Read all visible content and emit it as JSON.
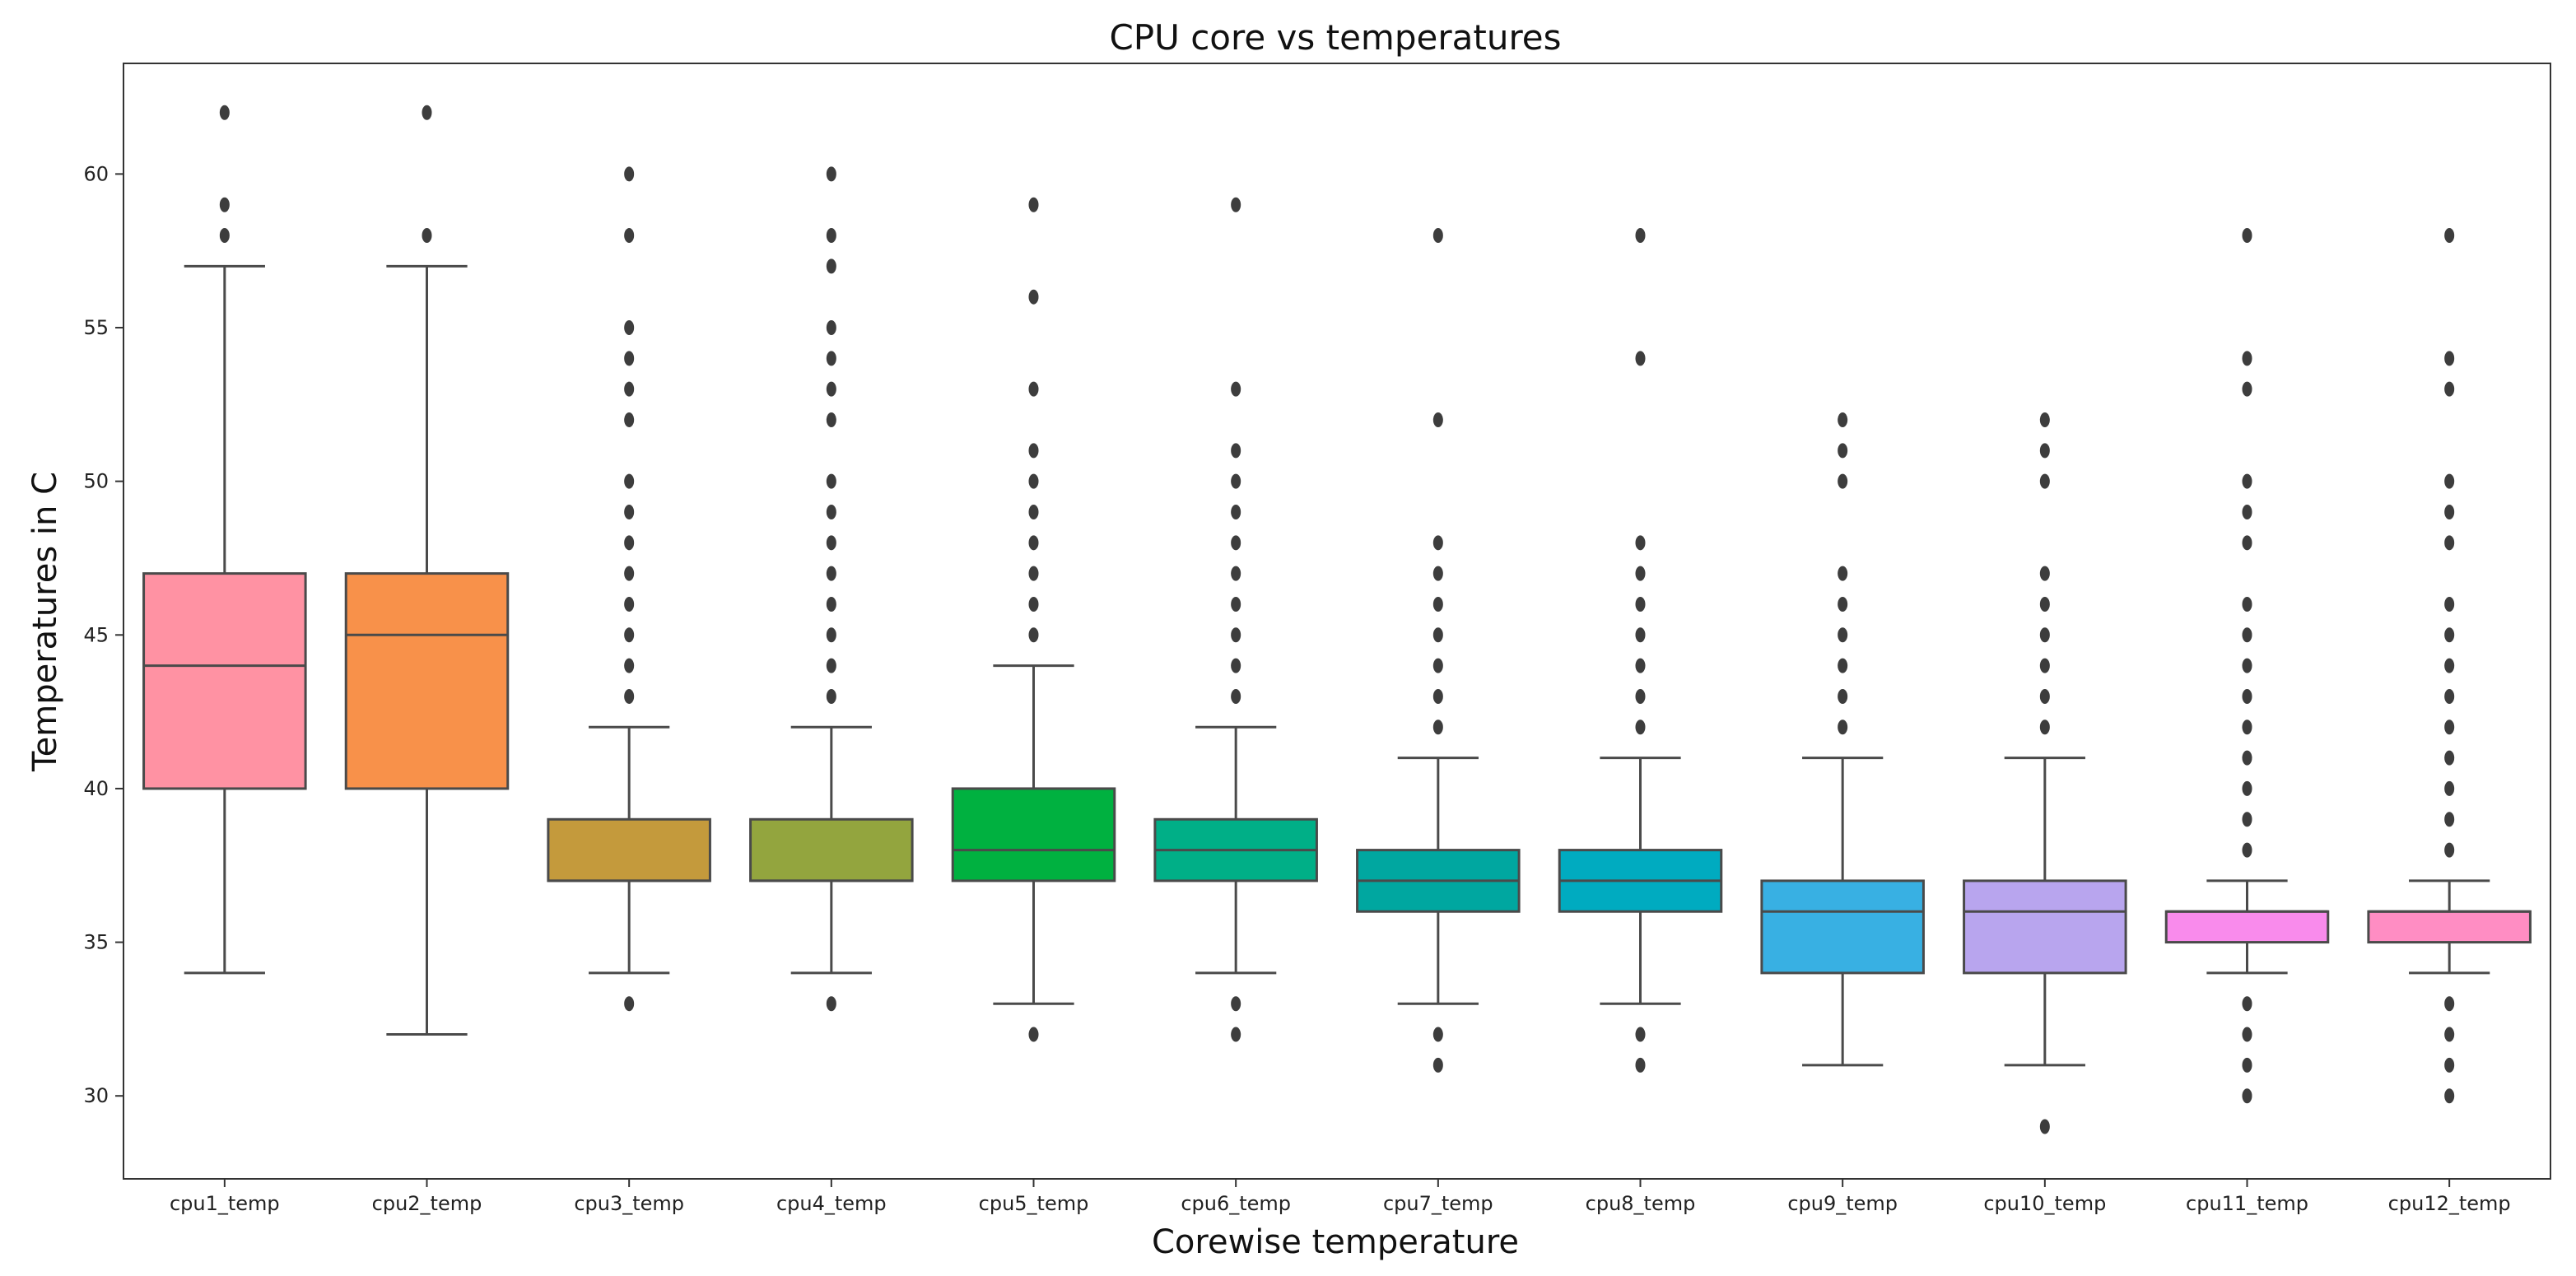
{
  "chart_data": {
    "type": "boxplot",
    "title": "CPU core vs temperatures",
    "xlabel": "Corewise temperature",
    "ylabel": "Temperatures in C",
    "ylim": [
      27.3,
      63.6
    ],
    "yticks": [
      30,
      35,
      40,
      45,
      50,
      55,
      60
    ],
    "grid": false,
    "series": [
      {
        "name": "cpu1_temp",
        "color": "#FF92A3",
        "whisker_low": 34,
        "q1": 40,
        "median": 44,
        "q3": 47,
        "whisker_high": 57,
        "outliers": [
          58,
          59,
          62
        ]
      },
      {
        "name": "cpu2_temp",
        "color": "#F8914A",
        "whisker_low": 32,
        "q1": 40,
        "median": 45,
        "q3": 47,
        "whisker_high": 57,
        "outliers": [
          58,
          62
        ]
      },
      {
        "name": "cpu3_temp",
        "color": "#C49A3C",
        "whisker_low": 34,
        "q1": 37,
        "median": 37,
        "q3": 39,
        "whisker_high": 42,
        "outliers": [
          33,
          43,
          44,
          45,
          46,
          47,
          48,
          49,
          50,
          52,
          53,
          54,
          55,
          58,
          60
        ]
      },
      {
        "name": "cpu4_temp",
        "color": "#93A53E",
        "whisker_low": 34,
        "q1": 37,
        "median": 37,
        "q3": 39,
        "whisker_high": 42,
        "outliers": [
          33,
          43,
          44,
          45,
          46,
          47,
          48,
          49,
          50,
          52,
          53,
          54,
          55,
          57,
          58,
          60
        ]
      },
      {
        "name": "cpu5_temp",
        "color": "#00B140",
        "whisker_low": 33,
        "q1": 37,
        "median": 38,
        "q3": 40,
        "whisker_high": 44,
        "outliers": [
          32,
          45,
          46,
          47,
          48,
          49,
          50,
          51,
          53,
          56,
          59
        ]
      },
      {
        "name": "cpu6_temp",
        "color": "#00AF87",
        "whisker_low": 34,
        "q1": 37,
        "median": 38,
        "q3": 39,
        "whisker_high": 42,
        "outliers": [
          32,
          33,
          43,
          44,
          45,
          46,
          47,
          48,
          49,
          50,
          51,
          53,
          59
        ]
      },
      {
        "name": "cpu7_temp",
        "color": "#00A7A0",
        "whisker_low": 33,
        "q1": 36,
        "median": 37,
        "q3": 38,
        "whisker_high": 41,
        "outliers": [
          31,
          32,
          42,
          43,
          44,
          45,
          46,
          47,
          48,
          52,
          58
        ]
      },
      {
        "name": "cpu8_temp",
        "color": "#00ABC0",
        "whisker_low": 33,
        "q1": 36,
        "median": 37,
        "q3": 38,
        "whisker_high": 41,
        "outliers": [
          31,
          32,
          42,
          43,
          44,
          45,
          46,
          47,
          48,
          54,
          58
        ]
      },
      {
        "name": "cpu9_temp",
        "color": "#38B0E3",
        "whisker_low": 31,
        "q1": 34,
        "median": 36,
        "q3": 37,
        "whisker_high": 41,
        "outliers": [
          42,
          43,
          44,
          45,
          46,
          47,
          50,
          51,
          52
        ]
      },
      {
        "name": "cpu10_temp",
        "color": "#B8A5EE",
        "whisker_low": 31,
        "q1": 34,
        "median": 36,
        "q3": 37,
        "whisker_high": 41,
        "outliers": [
          29,
          42,
          43,
          44,
          45,
          46,
          47,
          50,
          51,
          52
        ]
      },
      {
        "name": "cpu11_temp",
        "color": "#F98BEC",
        "whisker_low": 34,
        "q1": 35,
        "median": 36,
        "q3": 36,
        "whisker_high": 37,
        "outliers": [
          30,
          31,
          32,
          33,
          38,
          39,
          40,
          41,
          42,
          43,
          44,
          45,
          46,
          48,
          49,
          50,
          53,
          54,
          58
        ]
      },
      {
        "name": "cpu12_temp",
        "color": "#FF8DC3",
        "whisker_low": 34,
        "q1": 35,
        "median": 36,
        "q3": 36,
        "whisker_high": 37,
        "outliers": [
          30,
          31,
          32,
          33,
          38,
          39,
          40,
          41,
          42,
          43,
          44,
          45,
          46,
          48,
          49,
          50,
          53,
          54,
          58
        ]
      }
    ]
  }
}
